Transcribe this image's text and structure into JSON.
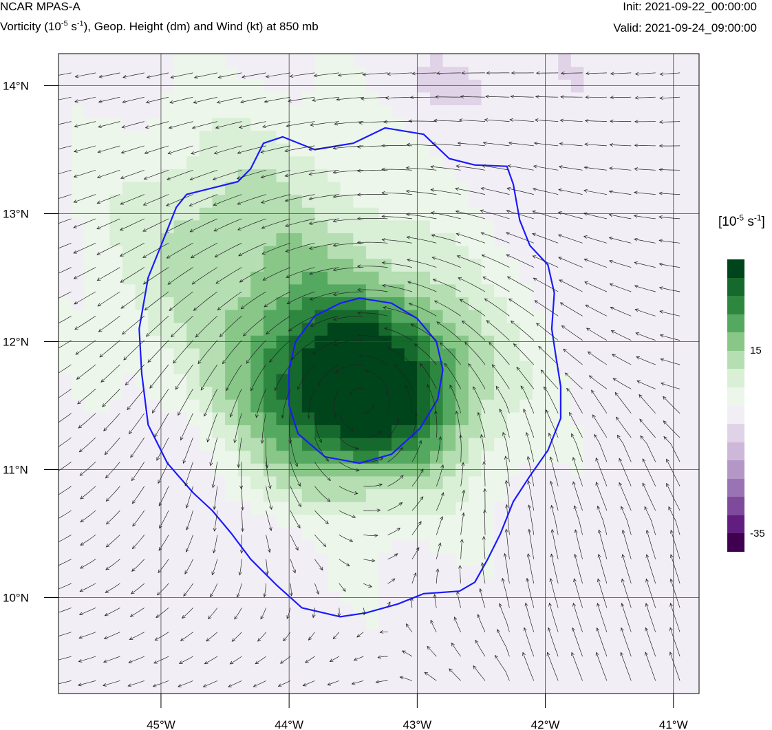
{
  "header": {
    "model": "NCAR MPAS-A",
    "field_pre": "Vorticity (10",
    "field_exp1": "-5",
    "field_mid": " s",
    "field_exp2": "-1",
    "field_post": "), Geop. Height (dm) and Wind (kt) at 850 mb",
    "init": "Init: 2021-09-22_00:00:00",
    "valid": "Valid: 2021-09-24_09:00:00"
  },
  "map": {
    "lon_min": -45.8,
    "lon_max": -40.8,
    "lat_min": 9.25,
    "lat_max": 14.25,
    "lon_ticks": [
      {
        "lon": -45,
        "label": "45°W"
      },
      {
        "lon": -44,
        "label": "44°W"
      },
      {
        "lon": -43,
        "label": "43°W"
      },
      {
        "lon": -42,
        "label": "42°W"
      },
      {
        "lon": -41,
        "label": "41°W"
      }
    ],
    "lat_ticks": [
      {
        "lat": 14,
        "label": "14°N"
      },
      {
        "lat": 13,
        "label": "13°N"
      },
      {
        "lat": 12,
        "label": "12°N"
      },
      {
        "lat": 11,
        "label": "11°N"
      },
      {
        "lat": 10,
        "label": "10°N"
      }
    ],
    "vortex_center": {
      "lon": -43.45,
      "lat": 11.65
    },
    "height_contours": [
      {
        "color": "#1a1aff",
        "points": [
          [
            -44.2,
            13.55
          ],
          [
            -44.05,
            13.6
          ],
          [
            -43.8,
            13.5
          ],
          [
            -43.5,
            13.55
          ],
          [
            -43.25,
            13.67
          ],
          [
            -42.95,
            13.62
          ],
          [
            -42.75,
            13.43
          ],
          [
            -42.55,
            13.38
          ],
          [
            -42.3,
            13.37
          ],
          [
            -42.25,
            13.23
          ],
          [
            -42.2,
            12.95
          ],
          [
            -42.12,
            12.75
          ],
          [
            -41.98,
            12.6
          ],
          [
            -41.93,
            12.38
          ],
          [
            -41.95,
            12.1
          ],
          [
            -41.92,
            11.9
          ],
          [
            -41.88,
            11.65
          ],
          [
            -41.88,
            11.4
          ],
          [
            -41.98,
            11.15
          ],
          [
            -42.12,
            10.95
          ],
          [
            -42.25,
            10.75
          ],
          [
            -42.35,
            10.5
          ],
          [
            -42.45,
            10.3
          ],
          [
            -42.55,
            10.12
          ],
          [
            -42.67,
            10.05
          ],
          [
            -42.95,
            10.03
          ],
          [
            -43.15,
            9.95
          ],
          [
            -43.4,
            9.88
          ],
          [
            -43.6,
            9.85
          ],
          [
            -43.9,
            9.92
          ],
          [
            -44.1,
            10.1
          ],
          [
            -44.3,
            10.3
          ],
          [
            -44.45,
            10.5
          ],
          [
            -44.6,
            10.68
          ],
          [
            -44.75,
            10.82
          ],
          [
            -44.95,
            11.05
          ],
          [
            -45.1,
            11.35
          ],
          [
            -45.15,
            11.75
          ],
          [
            -45.17,
            12.1
          ],
          [
            -45.1,
            12.5
          ],
          [
            -44.98,
            12.8
          ],
          [
            -44.88,
            13.05
          ],
          [
            -44.8,
            13.15
          ],
          [
            -44.6,
            13.2
          ],
          [
            -44.4,
            13.25
          ],
          [
            -44.3,
            13.35
          ],
          [
            -44.2,
            13.55
          ]
        ]
      },
      {
        "color": "#1a1aff",
        "points": [
          [
            -43.45,
            12.34
          ],
          [
            -43.2,
            12.3
          ],
          [
            -43.0,
            12.18
          ],
          [
            -42.85,
            12.0
          ],
          [
            -42.8,
            11.78
          ],
          [
            -42.84,
            11.55
          ],
          [
            -42.98,
            11.32
          ],
          [
            -43.2,
            11.12
          ],
          [
            -43.45,
            11.05
          ],
          [
            -43.72,
            11.1
          ],
          [
            -43.93,
            11.28
          ],
          [
            -44.0,
            11.5
          ],
          [
            -44.0,
            11.78
          ],
          [
            -43.95,
            12.0
          ],
          [
            -43.8,
            12.2
          ],
          [
            -43.6,
            12.3
          ],
          [
            -43.45,
            12.34
          ]
        ]
      }
    ]
  },
  "colorbar": {
    "label_pre": "[10",
    "label_exp1": "-5",
    "label_mid": " s",
    "label_exp2": "-1",
    "label_post": "]",
    "tick_high": "15",
    "tick_low": "-35",
    "colors_top_to_bottom": [
      "#00441b",
      "#16692c",
      "#2d873f",
      "#55a860",
      "#88c788",
      "#b5deb2",
      "#d9efd6",
      "#ecf6ea",
      "#f2eef5",
      "#e0d3e8",
      "#cdb8d9",
      "#b497c7",
      "#9a73b4",
      "#7f4a9b",
      "#621e7e",
      "#3f004f"
    ],
    "vorticity_min": -35,
    "vorticity_max": 45
  }
}
